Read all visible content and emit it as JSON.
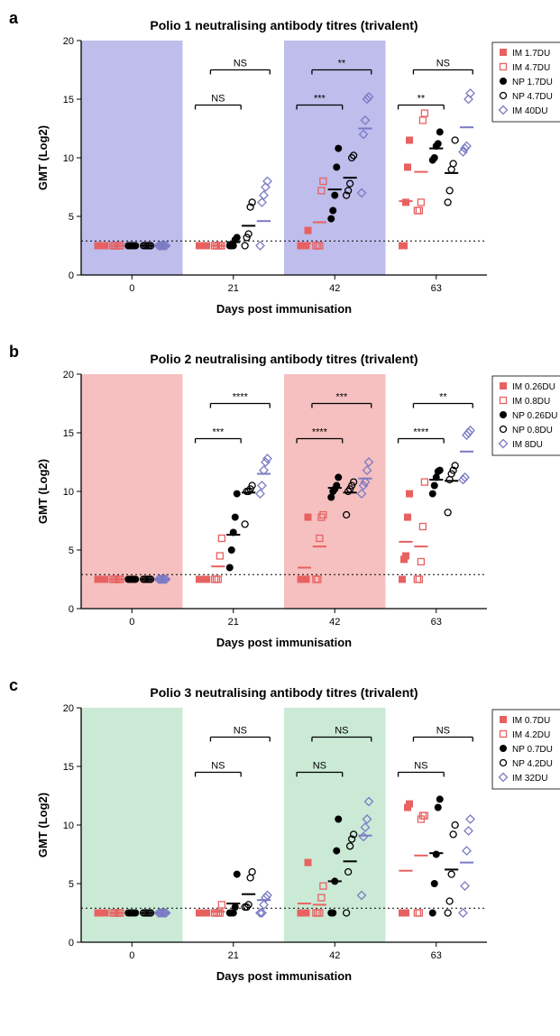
{
  "figure_width": 621,
  "figure_height": 1149,
  "x_categories": [
    0,
    21,
    42,
    63
  ],
  "xlabel": "Days post immunisation",
  "ylabel": "GMT (Log2)",
  "ylim": [
    0,
    20
  ],
  "ytick_step": 5,
  "threshold_y": 2.9,
  "threshold_style": "dotted",
  "label_fontsize": 13,
  "title_fontsize": 14,
  "tick_fontsize": 11,
  "legend_fontsize": 10,
  "marker_size": 7,
  "jitter_spread": 0.06,
  "panels": [
    {
      "id": "a",
      "title": "Polio 1 neutralising antibody titres (trivalent)",
      "shade_color": "#b3b2e8",
      "shade_alpha": 0.85,
      "legend": [
        {
          "label": "IM 1.7DU",
          "marker": "filled-square",
          "color": "#e86161"
        },
        {
          "label": "IM 4.7DU",
          "marker": "open-square",
          "color": "#e86161"
        },
        {
          "label": "NP 1.7DU",
          "marker": "filled-circle",
          "color": "#000000"
        },
        {
          "label": "NP 4.7DU",
          "marker": "open-circle",
          "color": "#000000"
        },
        {
          "label": "IM 40DU",
          "marker": "open-diamond",
          "color": "#7a7ac5"
        }
      ],
      "series": {
        "IM 1.7DU": {
          "0": [
            2.5,
            2.5,
            2.5,
            2.5,
            2.5
          ],
          "21": [
            2.5,
            2.5,
            2.5,
            2.5,
            2.5
          ],
          "42": [
            2.5,
            2.5,
            2.5,
            2.5,
            3.8
          ],
          "63": [
            2.5,
            2.5,
            6.2,
            9.2,
            11.5
          ]
        },
        "IM 4.7DU": {
          "0": [
            2.5,
            2.5,
            2.5,
            2.5,
            2.5
          ],
          "21": [
            2.5,
            2.5,
            2.5,
            2.5,
            2.5
          ],
          "42": [
            2.5,
            2.5,
            2.5,
            7.2,
            8.0
          ],
          "63": [
            5.5,
            5.5,
            6.2,
            13.2,
            13.8
          ]
        },
        "NP 1.7DU": {
          "0": [
            2.5,
            2.5,
            2.5,
            2.5,
            2.5
          ],
          "21": [
            2.5,
            2.5,
            2.5,
            3.0,
            3.2
          ],
          "42": [
            4.8,
            5.5,
            6.8,
            9.2,
            10.8
          ],
          "63": [
            9.8,
            10.0,
            11.0,
            11.2,
            12.2
          ]
        },
        "NP 4.7DU": {
          "0": [
            2.5,
            2.5,
            2.5,
            2.5,
            2.5
          ],
          "21": [
            2.5,
            3.2,
            3.5,
            5.8,
            6.2
          ],
          "42": [
            6.8,
            7.2,
            7.8,
            10.0,
            10.2
          ],
          "63": [
            6.2,
            7.2,
            9.0,
            9.5,
            11.5
          ]
        },
        "IM 40DU": {
          "0": [
            2.5,
            2.5,
            2.5,
            2.5,
            2.5
          ],
          "21": [
            2.5,
            6.2,
            6.8,
            7.5,
            8.0
          ],
          "42": [
            7.0,
            12.0,
            13.2,
            15.0,
            15.2
          ],
          "63": [
            10.5,
            10.8,
            11.0,
            15.0,
            15.5
          ]
        }
      },
      "means": {
        "IM 1.7DU": {
          "0": 2.5,
          "21": 2.5,
          "42": 2.7,
          "63": 6.3
        },
        "IM 4.7DU": {
          "0": 2.5,
          "21": 2.5,
          "42": 4.5,
          "63": 8.8
        },
        "NP 1.7DU": {
          "0": 2.5,
          "21": 2.8,
          "42": 7.3,
          "63": 10.8
        },
        "NP 4.7DU": {
          "0": 2.5,
          "21": 4.2,
          "42": 8.3,
          "63": 8.7
        },
        "IM 40DU": {
          "0": 2.5,
          "21": 4.6,
          "42": 12.5,
          "63": 12.6
        }
      },
      "sig": {
        "21": [
          {
            "y": 14.5,
            "label": "NS"
          },
          {
            "y": 17.5,
            "label": "NS"
          }
        ],
        "42": [
          {
            "y": 14.5,
            "label": "***"
          },
          {
            "y": 17.5,
            "label": "**"
          }
        ],
        "63": [
          {
            "y": 14.5,
            "label": "**"
          },
          {
            "y": 17.5,
            "label": "NS"
          }
        ]
      }
    },
    {
      "id": "b",
      "title": "Polio 2 neutralising antibody titres (trivalent)",
      "shade_color": "#f5b5b5",
      "shade_alpha": 0.85,
      "legend": [
        {
          "label": "IM 0.26DU",
          "marker": "filled-square",
          "color": "#e86161"
        },
        {
          "label": "IM 0.8DU",
          "marker": "open-square",
          "color": "#e86161"
        },
        {
          "label": "NP 0.26DU",
          "marker": "filled-circle",
          "color": "#000000"
        },
        {
          "label": "NP 0.8DU",
          "marker": "open-circle",
          "color": "#000000"
        },
        {
          "label": "IM 8DU",
          "marker": "open-diamond",
          "color": "#7a7ac5"
        }
      ],
      "series": {
        "IM 0.26DU": {
          "0": [
            2.5,
            2.5,
            2.5,
            2.5,
            2.5
          ],
          "21": [
            2.5,
            2.5,
            2.5,
            2.5,
            2.5
          ],
          "42": [
            2.5,
            2.5,
            2.5,
            2.5,
            7.8
          ],
          "63": [
            2.5,
            4.2,
            4.5,
            7.8,
            9.8
          ]
        },
        "IM 0.8DU": {
          "0": [
            2.5,
            2.5,
            2.5,
            2.5,
            2.5
          ],
          "21": [
            2.5,
            2.5,
            2.5,
            4.5,
            6.0
          ],
          "42": [
            2.5,
            2.5,
            6.0,
            7.8,
            8.0
          ],
          "63": [
            2.5,
            2.5,
            4.0,
            7.0,
            10.8
          ]
        },
        "NP 0.26DU": {
          "0": [
            2.5,
            2.5,
            2.5,
            2.5,
            2.5
          ],
          "21": [
            3.5,
            5.0,
            6.5,
            7.8,
            9.8
          ],
          "42": [
            9.5,
            10.0,
            10.2,
            10.5,
            11.2
          ],
          "63": [
            9.8,
            10.5,
            11.2,
            11.7,
            11.8
          ]
        },
        "NP 0.8DU": {
          "0": [
            2.5,
            2.5,
            2.5,
            2.5,
            2.5
          ],
          "21": [
            7.2,
            10.0,
            10.0,
            10.2,
            10.5
          ],
          "42": [
            8.0,
            10.0,
            10.2,
            10.5,
            10.8
          ],
          "63": [
            8.2,
            11.0,
            11.5,
            11.8,
            12.2
          ]
        },
        "IM 8DU": {
          "0": [
            2.5,
            2.5,
            2.5,
            2.5,
            2.5
          ],
          "21": [
            9.8,
            10.5,
            11.8,
            12.5,
            12.8
          ],
          "42": [
            9.8,
            10.5,
            10.8,
            11.8,
            12.5
          ],
          "63": [
            11.0,
            11.2,
            14.8,
            15.0,
            15.2
          ]
        }
      },
      "means": {
        "IM 0.26DU": {
          "0": 2.5,
          "21": 2.5,
          "42": 3.5,
          "63": 5.7
        },
        "IM 0.8DU": {
          "0": 2.5,
          "21": 3.6,
          "42": 5.3,
          "63": 5.3
        },
        "NP 0.26DU": {
          "0": 2.5,
          "21": 6.3,
          "42": 10.3,
          "63": 11.0
        },
        "NP 0.8DU": {
          "0": 2.5,
          "21": 9.9,
          "42": 9.9,
          "63": 10.9
        },
        "IM 8DU": {
          "0": 2.5,
          "21": 11.5,
          "42": 11.1,
          "63": 13.4
        }
      },
      "sig": {
        "21": [
          {
            "y": 14.5,
            "label": "***"
          },
          {
            "y": 17.5,
            "label": "****"
          }
        ],
        "42": [
          {
            "y": 14.5,
            "label": "****"
          },
          {
            "y": 17.5,
            "label": "***"
          }
        ],
        "63": [
          {
            "y": 14.5,
            "label": "****"
          },
          {
            "y": 17.5,
            "label": "**"
          }
        ]
      }
    },
    {
      "id": "c",
      "title": "Polio 3 neutralising antibody titres (trivalent)",
      "shade_color": "#c1e6cf",
      "shade_alpha": 0.85,
      "legend": [
        {
          "label": "IM 0.7DU",
          "marker": "filled-square",
          "color": "#e86161"
        },
        {
          "label": "IM 4.2DU",
          "marker": "open-square",
          "color": "#e86161"
        },
        {
          "label": "NP 0.7DU",
          "marker": "filled-circle",
          "color": "#000000"
        },
        {
          "label": "NP 4.2DU",
          "marker": "open-circle",
          "color": "#000000"
        },
        {
          "label": "IM 32DU",
          "marker": "open-diamond",
          "color": "#7a7ac5"
        }
      ],
      "series": {
        "IM 0.7DU": {
          "0": [
            2.5,
            2.5,
            2.5,
            2.5,
            2.5
          ],
          "21": [
            2.5,
            2.5,
            2.5,
            2.5,
            2.5
          ],
          "42": [
            2.5,
            2.5,
            2.5,
            2.5,
            6.8
          ],
          "63": [
            2.5,
            2.5,
            2.5,
            11.5,
            11.8
          ]
        },
        "IM 4.2DU": {
          "0": [
            2.5,
            2.5,
            2.5,
            2.5,
            2.5
          ],
          "21": [
            2.5,
            2.5,
            2.5,
            2.5,
            3.2
          ],
          "42": [
            2.5,
            2.5,
            2.5,
            3.8,
            4.8
          ],
          "63": [
            2.5,
            2.5,
            10.5,
            10.8,
            10.8
          ]
        },
        "NP 0.7DU": {
          "0": [
            2.5,
            2.5,
            2.5,
            2.5,
            2.5
          ],
          "21": [
            2.5,
            2.5,
            2.5,
            3.0,
            5.8
          ],
          "42": [
            2.5,
            2.5,
            5.2,
            7.8,
            10.5
          ],
          "63": [
            2.5,
            5.0,
            7.5,
            11.5,
            12.2
          ]
        },
        "NP 4.2DU": {
          "0": [
            2.5,
            2.5,
            2.5,
            2.5,
            2.5
          ],
          "21": [
            3.0,
            3.0,
            3.2,
            5.5,
            6.0
          ],
          "42": [
            2.5,
            6.0,
            8.2,
            8.8,
            9.2
          ],
          "63": [
            2.5,
            3.5,
            5.8,
            9.2,
            10.0
          ]
        },
        "IM 32DU": {
          "0": [
            2.5,
            2.5,
            2.5,
            2.5,
            2.5
          ],
          "21": [
            2.5,
            2.5,
            3.2,
            3.8,
            4.0
          ],
          "42": [
            4.0,
            9.0,
            9.8,
            10.5,
            12.0
          ],
          "63": [
            2.5,
            4.8,
            7.8,
            9.5,
            10.5
          ]
        }
      },
      "means": {
        "IM 0.7DU": {
          "0": 2.5,
          "21": 2.5,
          "42": 3.3,
          "63": 6.1
        },
        "IM 4.2DU": {
          "0": 2.5,
          "21": 2.6,
          "42": 3.2,
          "63": 7.4
        },
        "NP 0.7DU": {
          "0": 2.5,
          "21": 3.3,
          "42": 5.2,
          "63": 7.6
        },
        "NP 4.2DU": {
          "0": 2.5,
          "21": 4.1,
          "42": 6.9,
          "63": 6.2
        },
        "IM 32DU": {
          "0": 2.5,
          "21": 3.6,
          "42": 9.1,
          "63": 6.8
        }
      },
      "sig": {
        "21": [
          {
            "y": 14.5,
            "label": "NS"
          },
          {
            "y": 17.5,
            "label": "NS"
          }
        ],
        "42": [
          {
            "y": 14.5,
            "label": "NS"
          },
          {
            "y": 17.5,
            "label": "NS"
          }
        ],
        "63": [
          {
            "y": 14.5,
            "label": "NS"
          },
          {
            "y": 17.5,
            "label": "NS"
          }
        ]
      }
    }
  ]
}
